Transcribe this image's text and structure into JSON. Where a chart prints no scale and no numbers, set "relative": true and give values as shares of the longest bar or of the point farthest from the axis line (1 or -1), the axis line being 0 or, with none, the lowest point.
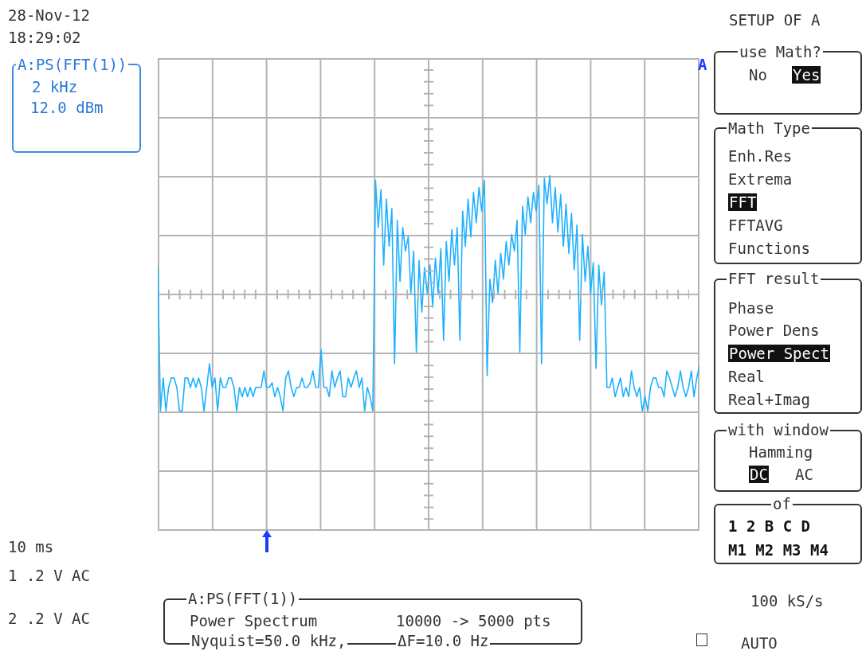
{
  "chart_data": {
    "type": "line",
    "relative": true,
    "grid": true,
    "color": "#1fb1fe",
    "categories": [
      null,
      null,
      null,
      null,
      null,
      null,
      null,
      null,
      null,
      null,
      null,
      null,
      null,
      null,
      null,
      null,
      null,
      null,
      null,
      null,
      null,
      null,
      null,
      null,
      null,
      null,
      null,
      null,
      null,
      null,
      null,
      null,
      null,
      null,
      null,
      null,
      null,
      null,
      null,
      null,
      null,
      null,
      null,
      null,
      null,
      null,
      null,
      null,
      null,
      null,
      null,
      null,
      null,
      null,
      null,
      null,
      null,
      null,
      null,
      null,
      null,
      null,
      null,
      null,
      null,
      null,
      null,
      null,
      null,
      null,
      null,
      null,
      null,
      null,
      null,
      null,
      null,
      null,
      null,
      null,
      null,
      null,
      null,
      null,
      null,
      null,
      null,
      null,
      null,
      null,
      null,
      null,
      null,
      null,
      null,
      null,
      null,
      null,
      null,
      null,
      null,
      null,
      null,
      null,
      null,
      null,
      null,
      null,
      null,
      null,
      null,
      null,
      null,
      null,
      null,
      null,
      null,
      null,
      null,
      null,
      null,
      null,
      null,
      null,
      null,
      null,
      null,
      null,
      null,
      null,
      null,
      null,
      null,
      null,
      null,
      null,
      null,
      null,
      null,
      null,
      null,
      null,
      null,
      null,
      null,
      null,
      null,
      null,
      null,
      null,
      null,
      null,
      null,
      null,
      null,
      null,
      null,
      null,
      null,
      null,
      null,
      null,
      null,
      null,
      null,
      null,
      null,
      null,
      null,
      null,
      null,
      null,
      null,
      null,
      null,
      null,
      null,
      null,
      null,
      null,
      null,
      null,
      null,
      null,
      null,
      null,
      null,
      null,
      null,
      null,
      null,
      null,
      null,
      null,
      null,
      null,
      null,
      null,
      null,
      null
    ],
    "values": [
      0.61,
      0,
      0.14,
      0,
      0.1,
      0.14,
      0.14,
      0.1,
      0,
      0,
      0.14,
      0.14,
      0.1,
      0.14,
      0.1,
      0.14,
      0.1,
      0,
      0.1,
      0.2,
      0.1,
      0.14,
      0,
      0.14,
      0.1,
      0.1,
      0.14,
      0.14,
      0.1,
      0,
      0.1,
      0.06,
      0.1,
      0.06,
      0.1,
      0.06,
      0.1,
      0.1,
      0.1,
      0.17,
      0.1,
      0.1,
      0.12,
      0.06,
      0.1,
      0.06,
      0,
      0.14,
      0.17,
      0.1,
      0.06,
      0.1,
      0.1,
      0.14,
      0.1,
      0.1,
      0.12,
      0.17,
      0.1,
      0.1,
      0.26,
      0.1,
      0.1,
      0.06,
      0.17,
      0.1,
      0.14,
      0.17,
      0.06,
      0.06,
      0.14,
      0.1,
      0.14,
      0.17,
      0.1,
      0.14,
      0,
      0.1,
      0.06,
      0,
      0.98,
      0.78,
      0.94,
      0.62,
      0.9,
      0.7,
      0.86,
      0.2,
      0.81,
      0.55,
      0.78,
      0.68,
      0.74,
      0.5,
      0.68,
      0.25,
      0.64,
      0.42,
      0.61,
      0.5,
      0.62,
      0.44,
      0.65,
      0.5,
      0.69,
      0.3,
      0.72,
      0.55,
      0.77,
      0.62,
      0.78,
      0.3,
      0.85,
      0.7,
      0.9,
      0.74,
      0.93,
      0.8,
      0.95,
      0.85,
      0.98,
      0.15,
      0.56,
      0.46,
      0.64,
      0.5,
      0.67,
      0.56,
      0.72,
      0.62,
      0.75,
      0.68,
      0.81,
      0.25,
      0.87,
      0.75,
      0.91,
      0.8,
      0.93,
      0.85,
      0.96,
      0.2,
      0.99,
      0.88,
      1,
      0.8,
      0.95,
      0.76,
      0.92,
      0.7,
      0.88,
      0.67,
      0.84,
      0.6,
      0.79,
      0.3,
      0.75,
      0.55,
      0.7,
      0.5,
      0.63,
      0.18,
      0.62,
      0.45,
      0.59,
      0.1,
      0.1,
      0.14,
      0.06,
      0.1,
      0.14,
      0.06,
      0.1,
      0.06,
      0.17,
      0.1,
      0.06,
      0.1,
      0,
      0.06,
      0,
      0.1,
      0.14,
      0.14,
      0.1,
      0.1,
      0.06,
      0.17,
      0.14,
      0.1,
      0.06,
      0.1,
      0.17,
      0.1,
      0.06,
      0.1,
      0.17,
      0.06,
      0.14,
      0.19
    ],
    "annotations": [
      "28-Nov-12",
      "18:29:02",
      "A:PS(FFT(1))",
      "2 kHz",
      "12.0 dBm",
      "SETUP OF A",
      "use Math?",
      "No",
      "Yes",
      "Math Type",
      "Enh.Res",
      "Extrema",
      "FFT",
      "FFTAVG",
      "Functions",
      "FFT result",
      "Phase",
      "Power Dens",
      "Power Spect",
      "Real",
      "Real+Imag",
      "with window",
      "Hamming",
      "DC",
      "AC",
      "of",
      "1 2 B C D",
      "M1 M2 M3 M4",
      "10 ms",
      "1 .2 V AC",
      "2 .2 V AC",
      "A:PS(FFT(1))",
      "Power Spectrum",
      "10000 -> 5000 pts",
      "Nyquist=50.0 kHz,",
      "ΔF=10.0 Hz",
      "100 kS/s",
      "AUTO",
      "A"
    ]
  }
}
